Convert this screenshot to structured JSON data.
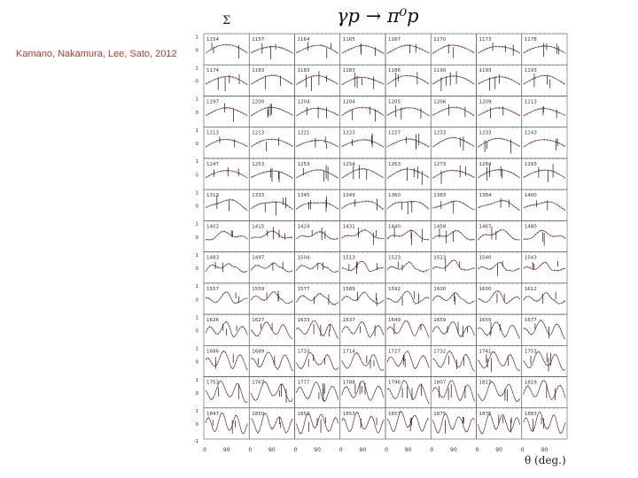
{
  "citation": "Kamano,  Nakamura, Lee, Sato, 2012",
  "observable_label": "Σ",
  "reaction_label": "γp → π⁰p",
  "xaxis_label": "θ (deg.)",
  "chart_data": {
    "type": "line",
    "rows": 13,
    "cols": 8,
    "panel_energies": [
      [
        "1154",
        "1157",
        "1164",
        "1165",
        "1167",
        "1170",
        "1173",
        "1178"
      ],
      [
        "1174",
        "1183",
        "1183",
        "1183",
        "1186",
        "1190",
        "1193",
        "1193"
      ],
      [
        "1197",
        "1200",
        "1204",
        "1204",
        "1205",
        "1206",
        "1209",
        "1213"
      ],
      [
        "1213",
        "1213",
        "1221",
        "1223",
        "1227",
        "1233",
        "1233",
        "1243"
      ],
      [
        "1247",
        "1253",
        "1253",
        "1254",
        "1263",
        "1273",
        "1284",
        "1293"
      ],
      [
        "1313",
        "1333",
        "1345",
        "1349",
        "1360",
        "1383",
        "1384",
        "1400"
      ],
      [
        "1402",
        "1415",
        "1424",
        "1431",
        "1440",
        "1458",
        "1467",
        "1480"
      ],
      [
        "1483",
        "1497",
        "1504",
        "1513",
        "1523",
        "1523",
        "1540",
        "1543"
      ],
      [
        "1557",
        "1559",
        "1577",
        "1589",
        "1592",
        "1600",
        "1600",
        "1612"
      ],
      [
        "1626",
        "1627",
        "1633",
        "1637",
        "1649",
        "1659",
        "1659",
        "1677"
      ],
      [
        "1686",
        "1689",
        "1710",
        "1714",
        "1727",
        "1732",
        "1741",
        "1753"
      ],
      [
        "1753",
        "1767",
        "1777",
        "1788",
        "1796",
        "1807",
        "1817",
        "1819"
      ],
      [
        "1847",
        "1850",
        "1852",
        "1853",
        "1857",
        "1875",
        "1875",
        "1883"
      ]
    ],
    "y_ticks": [
      "1",
      "0",
      "-1"
    ],
    "x_ticks": [
      "0",
      "90"
    ],
    "x_range": [
      0,
      180
    ],
    "y_range": [
      -1,
      1
    ]
  }
}
